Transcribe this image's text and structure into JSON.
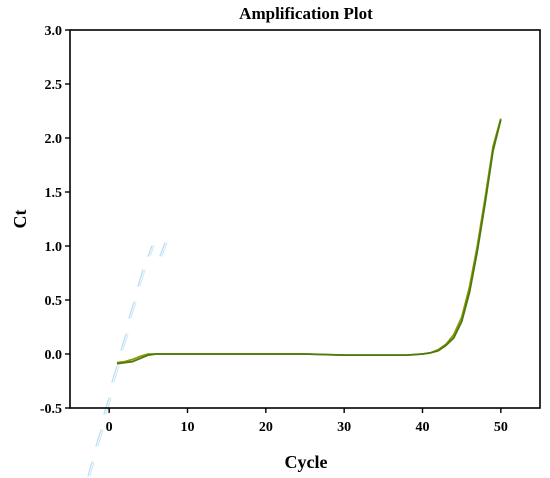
{
  "chart_data": {
    "type": "line",
    "title": "Amplification Plot",
    "xlabel": "Cycle",
    "ylabel": "Ct",
    "xlim": [
      -5,
      55
    ],
    "ylim": [
      -0.5,
      3.0
    ],
    "xticks": [
      0,
      10,
      20,
      30,
      40,
      50
    ],
    "yticks": [
      -0.5,
      0.0,
      0.5,
      1.0,
      1.5,
      2.0,
      2.5,
      3.0
    ],
    "ytick_labels": [
      "-0.5",
      "0.0",
      "0.5",
      "1.0",
      "1.5",
      "2.0",
      "2.5",
      "3.0"
    ],
    "grid": false,
    "colors": {
      "series_a": "#8a9a00",
      "series_b": "#4a7a10",
      "axis": "#000000",
      "watermark": "#a8d8f0"
    },
    "series": [
      {
        "x": [
          1,
          2,
          3,
          4,
          5,
          6,
          8,
          10,
          12,
          15,
          20,
          25,
          30,
          35,
          38,
          40,
          41,
          42,
          43,
          44,
          45,
          46,
          47,
          48,
          49,
          50
        ],
        "values": [
          -0.08,
          -0.07,
          -0.05,
          -0.02,
          0.0,
          0.0,
          0.0,
          0.0,
          0.0,
          0.0,
          0.0,
          0.0,
          -0.01,
          -0.01,
          -0.01,
          0.0,
          0.01,
          0.04,
          0.09,
          0.18,
          0.34,
          0.62,
          1.0,
          1.45,
          1.92,
          2.18
        ]
      },
      {
        "x": [
          1,
          2,
          3,
          4,
          5,
          6,
          8,
          10,
          12,
          15,
          20,
          25,
          30,
          35,
          38,
          40,
          41,
          42,
          43,
          44,
          45,
          46,
          47,
          48,
          49,
          50
        ],
        "values": [
          -0.09,
          -0.08,
          -0.07,
          -0.04,
          -0.01,
          0.0,
          0.0,
          0.0,
          0.0,
          0.0,
          0.0,
          0.0,
          -0.01,
          -0.01,
          -0.01,
          0.0,
          0.01,
          0.03,
          0.08,
          0.15,
          0.3,
          0.57,
          0.95,
          1.4,
          1.88,
          2.17
        ]
      }
    ]
  }
}
